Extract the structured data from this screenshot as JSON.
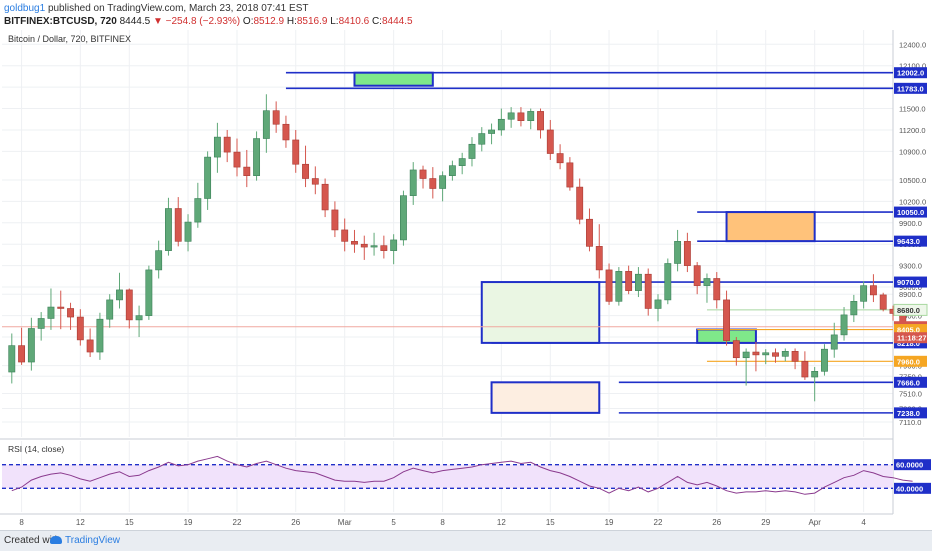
{
  "header": {
    "user": "goldbug1",
    "published_text": "published on TradingView.com, March 23, 2018 07:41 EST",
    "symbol": "BITFINEX:BTCUSD, 720",
    "last": "8444.5",
    "change_icon": "down-triangle-icon",
    "change": "−254.8 (−2.93%)",
    "o_label": "O:",
    "o_value": "8512.9",
    "h_label": "H:",
    "h_value": "8516.9",
    "l_label": "L:",
    "l_value": "8410.6",
    "c_label": "C:",
    "c_value": "8444.5"
  },
  "footer": {
    "created_with": "Created with",
    "brand": "TradingView"
  },
  "colors": {
    "bull": "#5fa878",
    "bear": "#d5574e",
    "box_border": "#1f2fc8",
    "green_fill": "#7fe88a",
    "orange_fill": "#ffc27a",
    "rsi_line": "#8a3a8e",
    "rsi_band": "#f1e2fb"
  },
  "chart_data": {
    "type": "candlestick",
    "title": "Bitcoin / Dollar, 720, BITFINEX",
    "price_axis": {
      "ticks": [
        12400,
        12100,
        11800,
        11500,
        11200,
        10900,
        10500,
        10200,
        9900,
        9600,
        9300,
        9000,
        8900,
        8600,
        8300,
        7900,
        7750,
        7510,
        7300,
        7110
      ],
      "tick_labels": [
        "12400.0",
        "12100.0",
        "11800.0",
        "11500.0",
        "11200.0",
        "10900.0",
        "10500.0",
        "10200.0",
        "9900.0",
        "9600.0",
        "9300.0",
        "9000.0",
        "8900.0",
        "8600.0",
        "8300.0",
        "7900.0",
        "7750.0",
        "7510.0",
        "7300.0",
        "7110.0"
      ],
      "range": [
        6900,
        12600
      ]
    },
    "x_axis": {
      "labels": [
        "8",
        "12",
        "15",
        "19",
        "22",
        "26",
        "Mar",
        "5",
        "8",
        "12",
        "15",
        "19",
        "22",
        "26",
        "29",
        "Apr",
        "4"
      ],
      "positions": [
        1,
        7,
        12,
        18,
        23,
        29,
        34,
        39,
        44,
        50,
        55,
        61,
        66,
        72,
        77,
        82,
        87
      ],
      "range": [
        -1,
        90
      ]
    },
    "candles": [
      [
        7810,
        8350,
        7650,
        8180
      ],
      [
        8180,
        8430,
        7910,
        7950
      ],
      [
        7950,
        8570,
        7830,
        8420
      ],
      [
        8420,
        8650,
        8250,
        8560
      ],
      [
        8560,
        8980,
        8400,
        8720
      ],
      [
        8720,
        8950,
        8410,
        8700
      ],
      [
        8700,
        8780,
        8400,
        8580
      ],
      [
        8580,
        8690,
        8180,
        8260
      ],
      [
        8260,
        8420,
        8020,
        8090
      ],
      [
        8090,
        8640,
        7980,
        8550
      ],
      [
        8550,
        8900,
        8430,
        8820
      ],
      [
        8820,
        9200,
        8700,
        8960
      ],
      [
        8960,
        8980,
        8420,
        8540
      ],
      [
        8540,
        8740,
        8300,
        8600
      ],
      [
        8600,
        9300,
        8540,
        9240
      ],
      [
        9240,
        9650,
        9120,
        9510
      ],
      [
        9510,
        10250,
        9440,
        10100
      ],
      [
        10100,
        10260,
        9570,
        9640
      ],
      [
        9640,
        10020,
        9500,
        9910
      ],
      [
        9910,
        10460,
        9830,
        10240
      ],
      [
        10240,
        10900,
        10080,
        10820
      ],
      [
        10820,
        11300,
        10600,
        11100
      ],
      [
        11100,
        11200,
        10750,
        10890
      ],
      [
        10890,
        11080,
        10550,
        10680
      ],
      [
        10680,
        10920,
        10400,
        10560
      ],
      [
        10560,
        11180,
        10490,
        11080
      ],
      [
        11080,
        11700,
        10880,
        11470
      ],
      [
        11470,
        11600,
        11160,
        11280
      ],
      [
        11280,
        11400,
        10950,
        11060
      ],
      [
        11060,
        11200,
        10600,
        10720
      ],
      [
        10720,
        10980,
        10400,
        10520
      ],
      [
        10520,
        10690,
        10300,
        10440
      ],
      [
        10440,
        10520,
        9980,
        10080
      ],
      [
        10080,
        10200,
        9700,
        9800
      ],
      [
        9800,
        9960,
        9500,
        9640
      ],
      [
        9640,
        9800,
        9480,
        9600
      ],
      [
        9600,
        9720,
        9380,
        9560
      ],
      [
        9560,
        9760,
        9440,
        9580
      ],
      [
        9580,
        9720,
        9400,
        9510
      ],
      [
        9510,
        9740,
        9320,
        9660
      ],
      [
        9660,
        10350,
        9580,
        10280
      ],
      [
        10280,
        10750,
        10150,
        10640
      ],
      [
        10640,
        10700,
        10380,
        10520
      ],
      [
        10520,
        10680,
        10240,
        10380
      ],
      [
        10380,
        10620,
        10200,
        10560
      ],
      [
        10560,
        10770,
        10490,
        10700
      ],
      [
        10700,
        10880,
        10580,
        10800
      ],
      [
        10800,
        11100,
        10690,
        11000
      ],
      [
        11000,
        11240,
        10900,
        11150
      ],
      [
        11150,
        11290,
        11000,
        11200
      ],
      [
        11200,
        11500,
        11120,
        11350
      ],
      [
        11350,
        11520,
        11230,
        11440
      ],
      [
        11440,
        11520,
        11250,
        11330
      ],
      [
        11330,
        11500,
        11210,
        11460
      ],
      [
        11460,
        11500,
        11080,
        11200
      ],
      [
        11200,
        11340,
        10780,
        10870
      ],
      [
        10870,
        11000,
        10650,
        10740
      ],
      [
        10740,
        10820,
        10350,
        10400
      ],
      [
        10400,
        10520,
        9880,
        9950
      ],
      [
        9950,
        10100,
        9500,
        9570
      ],
      [
        9570,
        9880,
        9120,
        9240
      ],
      [
        9240,
        9330,
        8750,
        8800
      ],
      [
        8800,
        9280,
        8740,
        9220
      ],
      [
        9220,
        9300,
        8900,
        8950
      ],
      [
        8950,
        9280,
        8860,
        9180
      ],
      [
        9180,
        9260,
        8600,
        8700
      ],
      [
        8700,
        8900,
        8520,
        8820
      ],
      [
        8820,
        9400,
        8760,
        9330
      ],
      [
        9330,
        9800,
        9220,
        9640
      ],
      [
        9640,
        9760,
        9210,
        9300
      ],
      [
        9300,
        9350,
        8900,
        9020
      ],
      [
        9020,
        9190,
        8780,
        9120
      ],
      [
        9120,
        9210,
        8700,
        8820
      ],
      [
        8820,
        8950,
        8180,
        8250
      ],
      [
        8250,
        8300,
        7900,
        8010
      ],
      [
        8010,
        8140,
        7620,
        8090
      ],
      [
        8090,
        8230,
        7820,
        8050
      ],
      [
        8050,
        8130,
        7920,
        8080
      ],
      [
        8080,
        8140,
        7940,
        8030
      ],
      [
        8030,
        8140,
        7960,
        8100
      ],
      [
        8100,
        8140,
        7850,
        7960
      ],
      [
        7960,
        8100,
        7700,
        7740
      ],
      [
        7740,
        7880,
        7400,
        7820
      ],
      [
        7820,
        8200,
        7760,
        8130
      ],
      [
        8130,
        8500,
        8010,
        8330
      ],
      [
        8330,
        8720,
        8250,
        8610
      ],
      [
        8610,
        8890,
        8510,
        8800
      ],
      [
        8800,
        9080,
        8700,
        9020
      ],
      [
        9020,
        9180,
        8790,
        8890
      ],
      [
        8890,
        8920,
        8660,
        8690
      ],
      [
        8690,
        8740,
        8530,
        8630
      ],
      [
        8630,
        8690,
        8420,
        8513
      ],
      [
        8513,
        8517,
        8411,
        8445
      ]
    ],
    "levels": [
      {
        "price": 12002,
        "label": "12002.0",
        "type": "box",
        "x0": 28,
        "x1": 91,
        "style": "blue"
      },
      {
        "price": 11783,
        "label": "11783.0",
        "type": "line",
        "x0": 28,
        "x1": 91,
        "style": "blue"
      },
      {
        "price": 10050,
        "label": "10050.0",
        "type": "line",
        "x0": 70,
        "x1": 91,
        "style": "blue"
      },
      {
        "price": 9643,
        "label": "9643.0",
        "type": "line",
        "x0": 70,
        "x1": 91,
        "style": "blue"
      },
      {
        "price": 9070,
        "label": "9070.0",
        "type": "line",
        "x0": 58,
        "x1": 91,
        "style": "blue"
      },
      {
        "price": 8680,
        "label": "8680.0",
        "type": "line",
        "x0": 71,
        "x1": 91,
        "style": "lightgreen"
      },
      {
        "price": 8444.5,
        "label": "8444.5",
        "type": "line",
        "x0": -1,
        "x1": 91,
        "style": "lastprice"
      },
      {
        "price": 8405,
        "label": "8405.0",
        "type": "line",
        "x0": 70,
        "x1": 91,
        "style": "orange"
      },
      {
        "price": 8218,
        "label": "8218.0",
        "type": "line",
        "x0": 49,
        "x1": 91,
        "style": "blue"
      },
      {
        "price": 7960,
        "label": "7960.0",
        "type": "line",
        "x0": 71,
        "x1": 91,
        "style": "orange"
      },
      {
        "price": 7666,
        "label": "7666.0",
        "type": "line",
        "x0": 62,
        "x1": 91,
        "style": "blue"
      },
      {
        "price": 7238,
        "label": "7238.0",
        "type": "line",
        "x0": 62,
        "x1": 91,
        "style": "blue"
      }
    ],
    "countdown_label": "11:18:27",
    "boxes": [
      {
        "x0": 35,
        "x1": 43,
        "p_top": 12002,
        "p_bottom": 11820,
        "fill": "green"
      },
      {
        "x0": 73,
        "x1": 82,
        "p_top": 10050,
        "p_bottom": 9643,
        "fill": "orange"
      },
      {
        "x0": 48,
        "x1": 60,
        "p_top": 9070,
        "p_bottom": 8218,
        "fill": "lightgreen"
      },
      {
        "x0": 70,
        "x1": 76,
        "p_top": 8405,
        "p_bottom": 8218,
        "fill": "green"
      },
      {
        "x0": 49,
        "x1": 60,
        "p_top": 7666,
        "p_bottom": 7238,
        "fill": "peach"
      }
    ],
    "rsi": {
      "title": "RSI (14, close)",
      "upper": 60,
      "lower": 40,
      "upper_label": "60.0000",
      "lower_label": "40.0000",
      "range": [
        20,
        80
      ],
      "values": [
        38,
        41,
        47,
        50,
        52,
        53,
        51,
        48,
        46,
        49,
        52,
        54,
        50,
        51,
        55,
        58,
        62,
        59,
        60,
        63,
        65,
        67,
        63,
        60,
        58,
        61,
        63,
        60,
        57,
        55,
        54,
        53,
        50,
        47,
        46,
        46,
        45,
        46,
        46,
        49,
        54,
        57,
        55,
        53,
        55,
        56,
        57,
        58,
        60,
        61,
        62,
        63,
        61,
        62,
        58,
        55,
        53,
        50,
        46,
        42,
        40,
        36,
        40,
        38,
        41,
        37,
        40,
        45,
        50,
        45,
        43,
        45,
        42,
        38,
        36,
        37,
        37,
        38,
        37,
        38,
        37,
        35,
        36,
        41,
        45,
        49,
        51,
        55,
        53,
        50,
        49,
        47,
        46
      ]
    }
  }
}
